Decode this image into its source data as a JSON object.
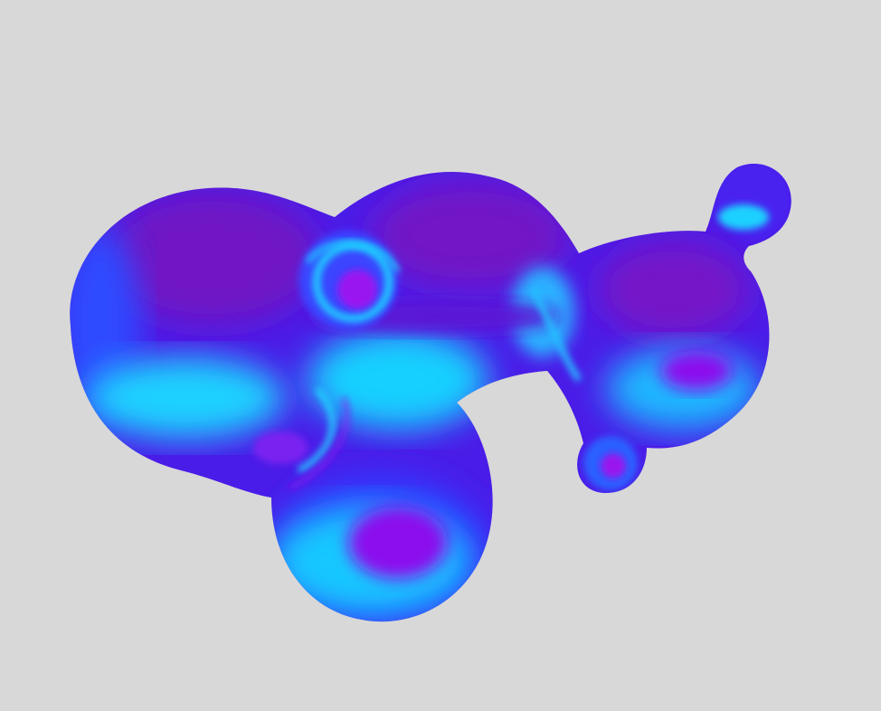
{
  "scene": {
    "background_color": "#d8d8d8",
    "object": "blob-mesh",
    "shading": "normal-map",
    "colors": {
      "deep_blue": "#3b1ef0",
      "violet": "#6a16c8",
      "purple": "#8a12e6",
      "cyan": "#18d8ff",
      "sky_blue": "#2a8cff",
      "magenta_hint": "#b018f0"
    }
  }
}
